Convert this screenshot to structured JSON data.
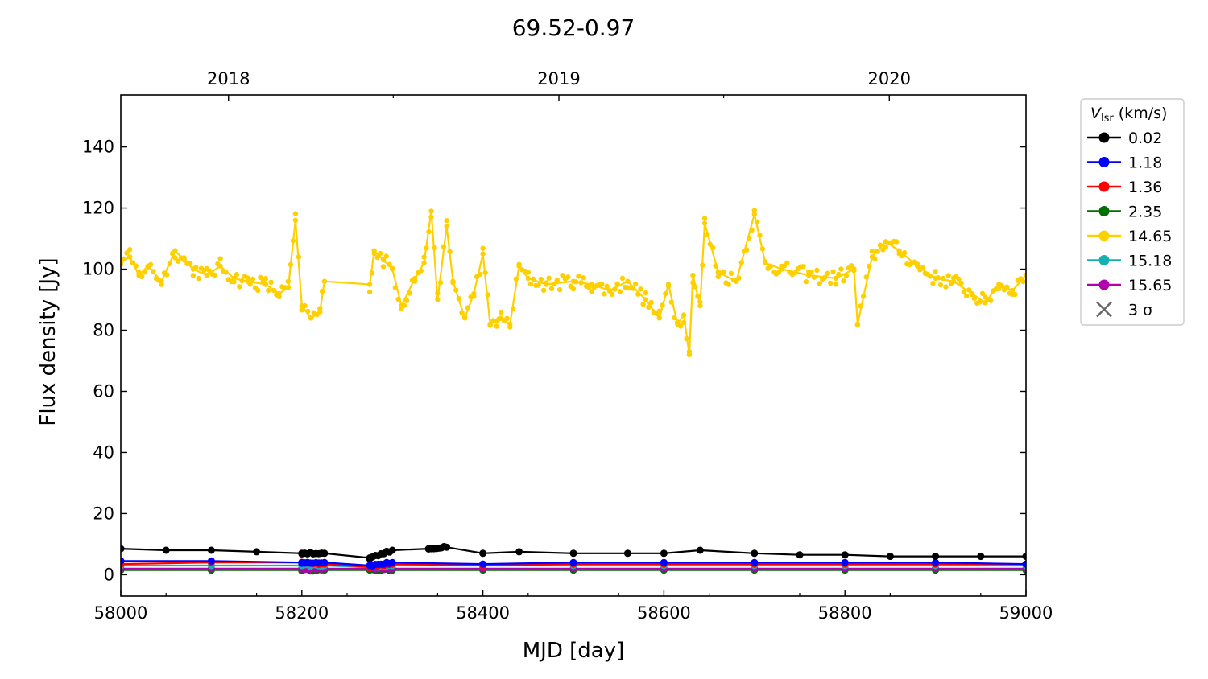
{
  "chart_data": {
    "type": "line",
    "title": "69.52-0.97",
    "xlabel": "MJD [day]",
    "ylabel": "Flux density [Jy]",
    "xlim": [
      58000,
      59000
    ],
    "ylim": [
      -7,
      157
    ],
    "x_ticks": [
      58000,
      58200,
      58400,
      58600,
      58800,
      59000
    ],
    "y_ticks": [
      0,
      20,
      40,
      60,
      80,
      100,
      120,
      140
    ],
    "top_axis": {
      "ticks": [
        {
          "label": "2018",
          "mjd": 58119
        },
        {
          "label": "2019",
          "mjd": 58484
        },
        {
          "label": "2020",
          "mjd": 58849
        }
      ]
    },
    "grid": false,
    "legend": {
      "placement": "outside-right",
      "title_var": "V",
      "title_sub": "lsr",
      "title_unit": "(km/s)",
      "sigma_label": "3 σ",
      "sigma_color": "#666666"
    },
    "series": [
      {
        "name": "0.02",
        "color": "#000000",
        "x": [
          58000,
          58050,
          58100,
          58150,
          58200,
          58225,
          58275,
          58300,
          58340,
          58360,
          58400,
          58440,
          58500,
          58560,
          58600,
          58640,
          58700,
          58750,
          58800,
          58850,
          58900,
          58950,
          59000
        ],
        "y": [
          8.5,
          8,
          8,
          7.5,
          7,
          7,
          5.5,
          8,
          8.5,
          9,
          7,
          7.5,
          7,
          7,
          7,
          8,
          7,
          6.5,
          6.5,
          6,
          6,
          6,
          6
        ]
      },
      {
        "name": "1.18",
        "color": "#0000ff",
        "x": [
          58000,
          58100,
          58200,
          58225,
          58275,
          58300,
          58400,
          58500,
          58600,
          58700,
          58800,
          58900,
          59000
        ],
        "y": [
          4.5,
          4.5,
          4,
          4,
          3,
          4,
          3.5,
          4,
          4,
          4,
          4,
          4,
          3.5
        ]
      },
      {
        "name": "1.36",
        "color": "#ff0000",
        "x": [
          58000,
          58100,
          58200,
          58225,
          58275,
          58300,
          58400,
          58500,
          58600,
          58700,
          58800,
          58900,
          59000
        ],
        "y": [
          3.5,
          4,
          4,
          3.5,
          2.5,
          3.5,
          3,
          3.5,
          3.5,
          3.5,
          3.5,
          3.5,
          3.5
        ]
      },
      {
        "name": "2.35",
        "color": "#007000",
        "x": [
          58000,
          58100,
          58200,
          58225,
          58275,
          58300,
          58400,
          58500,
          58600,
          58700,
          58800,
          58900,
          59000
        ],
        "y": [
          1.5,
          1.5,
          1.5,
          1.5,
          1.5,
          1.5,
          1.5,
          1.5,
          1.5,
          1.5,
          1.5,
          1.5,
          1.5
        ]
      },
      {
        "name": "14.65",
        "color": "#ffd000",
        "x": [
          58000,
          58010,
          58020,
          58030,
          58045,
          58060,
          58070,
          58080,
          58095,
          58110,
          58125,
          58140,
          58160,
          58175,
          58185,
          58193,
          58200,
          58210,
          58220,
          58225,
          58275,
          58280,
          58290,
          58300,
          58310,
          58325,
          58335,
          58343,
          58350,
          58360,
          58367,
          58380,
          58390,
          58400,
          58408,
          58415,
          58420,
          58430,
          58440,
          58450,
          58470,
          58500,
          58520,
          58540,
          58560,
          58580,
          58595,
          58605,
          58615,
          58622,
          58628,
          58632,
          58640,
          58645,
          58660,
          58680,
          58700,
          58712,
          58730,
          58760,
          58790,
          58810,
          58814,
          58830,
          58845,
          58860,
          58880,
          58900,
          58920,
          58940,
          58955,
          58970,
          58985,
          59000
        ],
        "y": [
          102,
          104,
          98,
          101,
          96,
          106,
          103,
          100,
          98,
          101,
          97,
          96,
          95,
          92,
          94,
          116,
          88,
          84,
          86,
          96,
          95,
          106,
          103,
          100,
          88,
          97,
          102,
          119,
          90,
          114,
          96,
          84,
          92,
          105,
          82,
          83,
          84,
          82,
          101,
          97,
          95,
          96,
          95,
          93,
          96,
          90,
          84,
          95,
          82,
          85,
          72,
          98,
          88,
          115,
          99,
          96,
          118,
          102,
          100,
          98,
          97,
          100,
          82,
          104,
          109,
          106,
          101,
          97,
          96,
          92,
          89,
          95,
          93,
          98
        ]
      },
      {
        "name": "15.18",
        "color": "#17b0b0",
        "x": [
          58000,
          58100,
          58200,
          58225,
          58275,
          58300,
          58400,
          58500,
          58600,
          58700,
          58800,
          58900,
          59000
        ],
        "y": [
          3,
          3,
          3,
          3,
          2.5,
          3,
          3,
          3,
          3,
          3,
          3,
          3,
          3
        ]
      },
      {
        "name": "15.65",
        "color": "#b000b0",
        "x": [
          58000,
          58100,
          58200,
          58225,
          58275,
          58300,
          58400,
          58500,
          58600,
          58700,
          58800,
          58900,
          59000
        ],
        "y": [
          2,
          2,
          2,
          2,
          2,
          2,
          2,
          2,
          2,
          2,
          2,
          2,
          2
        ]
      }
    ]
  }
}
